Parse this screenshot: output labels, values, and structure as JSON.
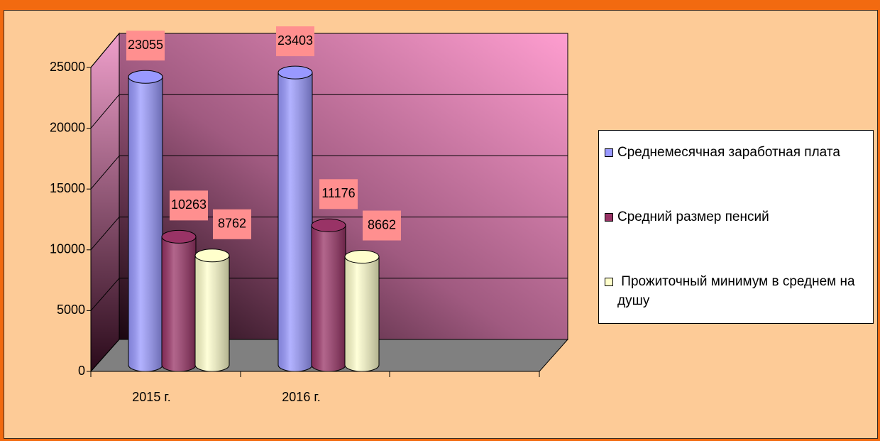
{
  "chart_data": {
    "type": "bar3d",
    "categories": [
      "2015 г.",
      "2016 г."
    ],
    "series": [
      {
        "name": "Среднемесячная заработная плата",
        "color": "#9999ff",
        "values": [
          23055,
          23403
        ]
      },
      {
        "name": "Средний размер пенсий",
        "color": "#993366",
        "values": [
          10263,
          11176
        ]
      },
      {
        "name": " Прожиточный минимум в среднем на душу",
        "color": "#ffffcc",
        "values": [
          8762,
          8662
        ]
      }
    ],
    "ylim": [
      0,
      25000
    ],
    "yticks": [
      0,
      5000,
      10000,
      15000,
      20000,
      25000
    ],
    "grid": true,
    "label_color": "#ff8f8f",
    "legend": "right"
  }
}
